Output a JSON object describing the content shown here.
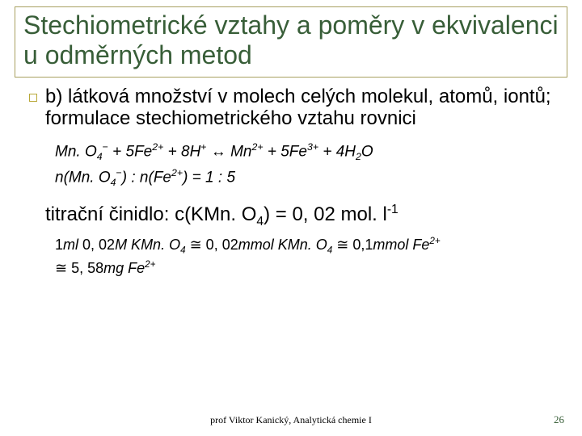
{
  "colors": {
    "title": "#385e38",
    "title_border": "#a8a060",
    "bullet_border": "#b8a838",
    "pagenum": "#385e38"
  },
  "title": "Stechiometrické vztahy a poměry v ekvivalenci u odměrných metod",
  "bullet": {
    "label": "b)",
    "text": " látková množství v molech celých molekul, atomů, iontů; formulace stechiometrického vztahu rovnici"
  },
  "eq1": {
    "mn": "Mn. O",
    "mn_sub": "4",
    "mn_sup": "−",
    "plus1": " + 5",
    "fe": "Fe",
    "fe_sup2": "2+",
    "plus2": " + 8",
    "h": "H",
    "h_sup": "+",
    "arrow": " ↔ ",
    "mn2": "Mn",
    "mn2_sup": "2+",
    "plus3": " + 5",
    "fe3": "Fe",
    "fe3_sup": "3+",
    "plus4": " + 4",
    "h2o_h": "H",
    "h2o_sub": "2",
    "h2o_o": "O"
  },
  "eq2": {
    "n1": "n",
    "lp1": "(",
    "mn": "Mn. O",
    "mn_sub": "4",
    "mn_sup": "−",
    "rp1": ")",
    "colon": " : ",
    "n2": "n",
    "lp2": "(",
    "fe": "Fe",
    "fe_sup": "2+",
    "rp2": ")",
    "eq": " = 1 : 5"
  },
  "body2": {
    "pre": "titrační činidlo: c(KMn. O",
    "sub": "4",
    "mid": ") = 0, 02 mol. l",
    "sup": "-1"
  },
  "eq3": {
    "l1a": "1",
    "l1_ml": "ml",
    "l1_sp": " 0, 02",
    "l1_M": "M KMn. O",
    "l1_sub": "4",
    "approx1": " ≅ 0, 02",
    "l1_mmol": "mmol KMn. O",
    "l1_sub2": "4",
    "approx2": " ≅ 0,1",
    "l1_mmolfe": "mmol Fe",
    "l1_fe_sup": "2+",
    "l2_approx": "≅ 5, 58",
    "l2_mg": "mg Fe",
    "l2_sup": "2+"
  },
  "footer": "prof Viktor Kanický, Analytická chemie I",
  "page": "26"
}
